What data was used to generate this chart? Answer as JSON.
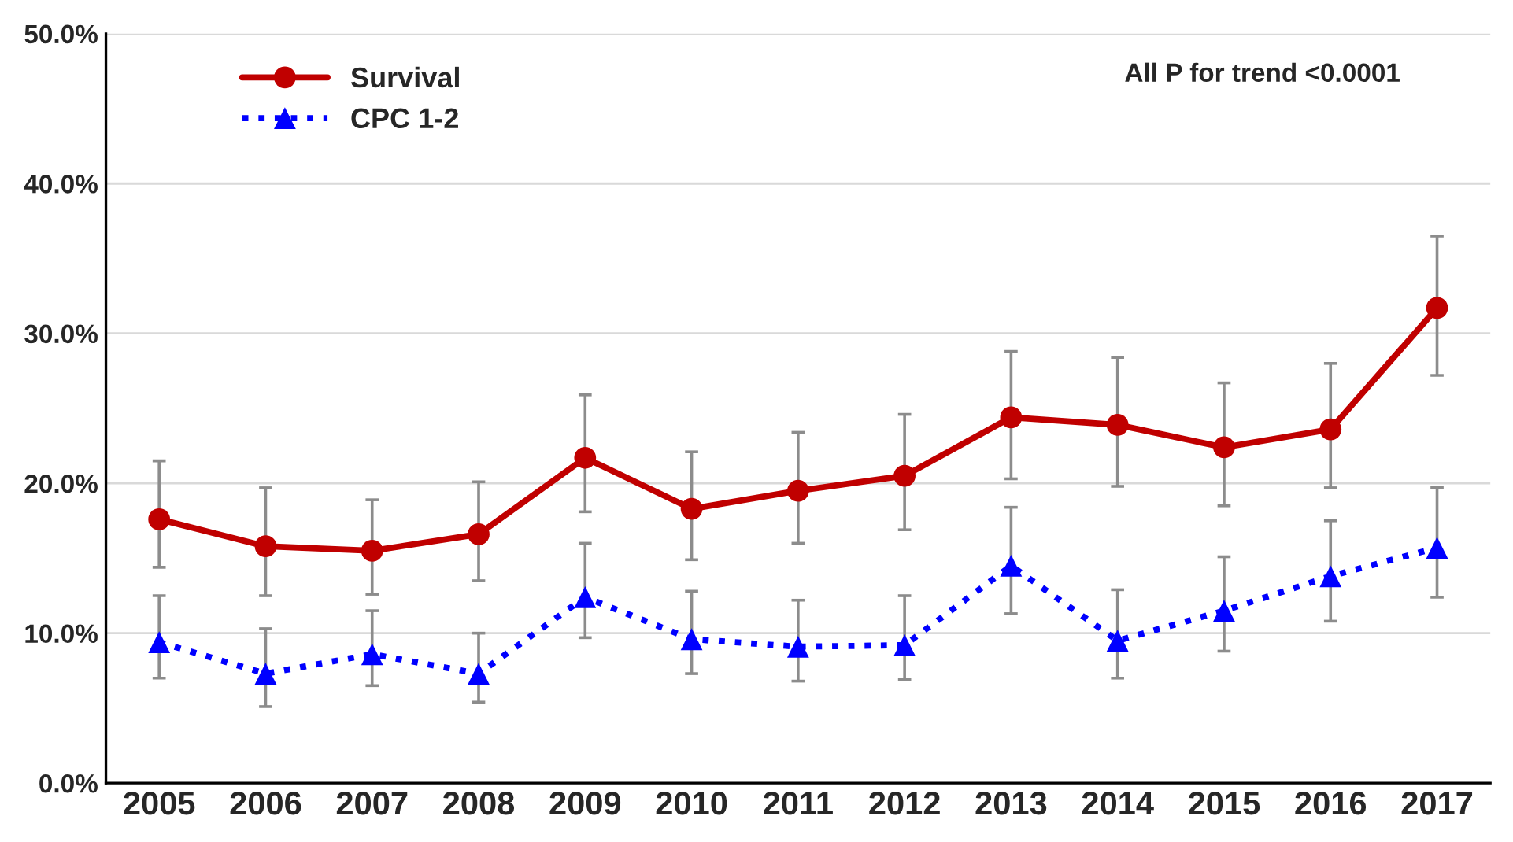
{
  "chart_data": {
    "type": "line",
    "categories": [
      "2005",
      "2006",
      "2007",
      "2008",
      "2009",
      "2010",
      "2011",
      "2012",
      "2013",
      "2014",
      "2015",
      "2016",
      "2017"
    ],
    "series": [
      {
        "name": "Survival",
        "color": "#c00000",
        "marker": "circle",
        "line_style": "solid",
        "values": [
          17.6,
          15.8,
          15.5,
          16.6,
          21.7,
          18.3,
          19.5,
          20.5,
          24.4,
          23.9,
          22.4,
          23.6,
          31.7
        ],
        "errors": [
          [
            14.4,
            21.5
          ],
          [
            12.5,
            19.7
          ],
          [
            12.6,
            18.9
          ],
          [
            13.5,
            20.1
          ],
          [
            18.1,
            25.9
          ],
          [
            14.9,
            22.1
          ],
          [
            16.0,
            23.4
          ],
          [
            16.9,
            24.6
          ],
          [
            20.3,
            28.8
          ],
          [
            19.8,
            28.4
          ],
          [
            18.5,
            26.7
          ],
          [
            19.7,
            28.0
          ],
          [
            27.2,
            36.5
          ]
        ]
      },
      {
        "name": "CPC 1-2",
        "color": "#0000ff",
        "marker": "triangle",
        "line_style": "dotted",
        "values": [
          9.4,
          7.3,
          8.6,
          7.3,
          12.4,
          9.6,
          9.1,
          9.2,
          14.5,
          9.5,
          11.5,
          13.8,
          15.7
        ],
        "errors": [
          [
            7.0,
            12.5
          ],
          [
            5.1,
            10.3
          ],
          [
            6.5,
            11.5
          ],
          [
            5.4,
            10.0
          ],
          [
            9.7,
            16.0
          ],
          [
            7.3,
            12.8
          ],
          [
            6.8,
            12.2
          ],
          [
            6.9,
            12.5
          ],
          [
            11.3,
            18.4
          ],
          [
            7.0,
            12.9
          ],
          [
            8.8,
            15.1
          ],
          [
            10.8,
            17.5
          ],
          [
            12.4,
            19.7
          ]
        ]
      }
    ],
    "ylim": [
      0,
      50
    ],
    "yticks": [
      {
        "value": 0,
        "label": "0.0%"
      },
      {
        "value": 10,
        "label": "10.0%"
      },
      {
        "value": 20,
        "label": "20.0%"
      },
      {
        "value": 30,
        "label": "30.0%"
      },
      {
        "value": 40,
        "label": "40.0%"
      },
      {
        "value": 50,
        "label": "50.0%"
      }
    ],
    "grid": "y",
    "legend": "top left",
    "annotations": [
      "All P for trend <0.0001"
    ]
  }
}
